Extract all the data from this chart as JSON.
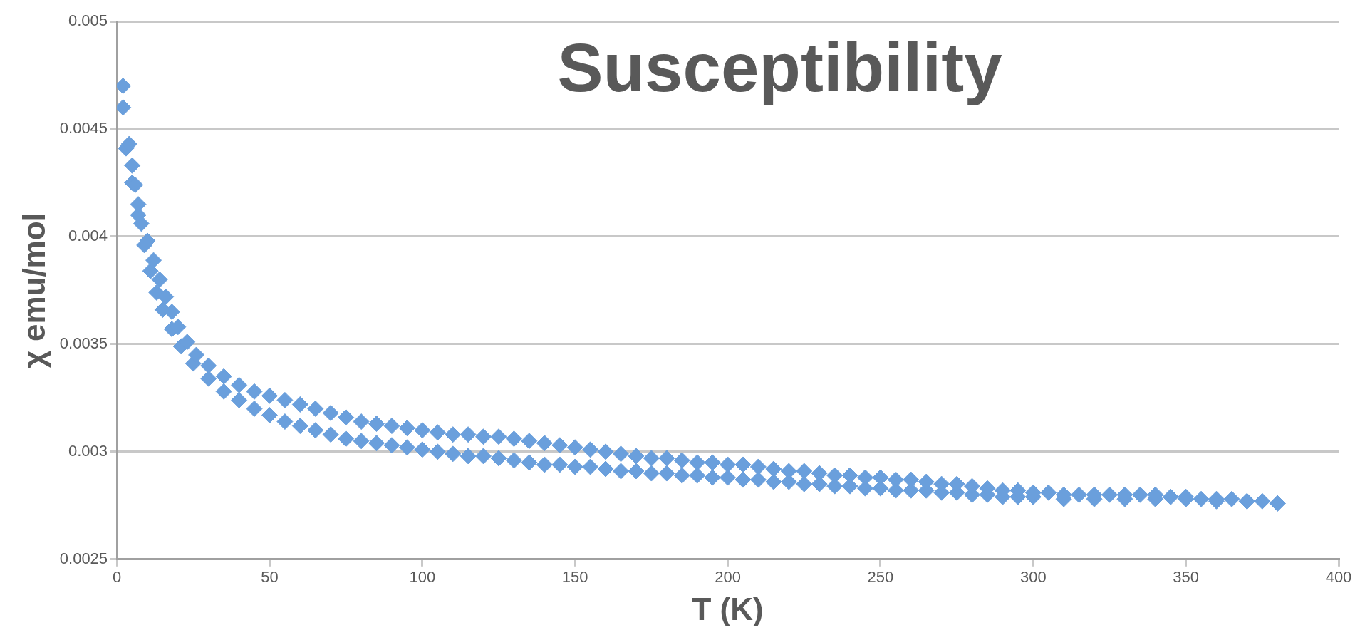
{
  "chart_data": {
    "type": "scatter",
    "title": "Susceptibility",
    "xlabel": "T (K)",
    "ylabel": "χ emu/mol",
    "marker": "diamond",
    "grid": "y",
    "xlim": [
      0,
      400
    ],
    "xticks": [
      0,
      50,
      100,
      150,
      200,
      250,
      300,
      350,
      400
    ],
    "ylim": [
      0.0025,
      0.005
    ],
    "yticks": [
      0.0025,
      0.003,
      0.0035,
      0.004,
      0.0045,
      0.005
    ],
    "series": [
      {
        "color": "#6a9fdc",
        "x": [
          2,
          2,
          4,
          5,
          6,
          7,
          8,
          10,
          12,
          14,
          16,
          18,
          20,
          23,
          26,
          30,
          35,
          40,
          45,
          50,
          55,
          60,
          65,
          70,
          75,
          80,
          85,
          90,
          95,
          100,
          105,
          110,
          115,
          120,
          125,
          130,
          135,
          140,
          145,
          150,
          155,
          160,
          165,
          170,
          175,
          180,
          185,
          190,
          195,
          200,
          205,
          210,
          215,
          220,
          225,
          230,
          235,
          240,
          245,
          250,
          255,
          260,
          265,
          270,
          275,
          280,
          285,
          290,
          295,
          300,
          305,
          310,
          315,
          320,
          325,
          330,
          335,
          340,
          345,
          350,
          355,
          360,
          365,
          370,
          375,
          380
        ],
        "values": [
          0.0047,
          0.0046,
          0.00443,
          0.00433,
          0.00424,
          0.00415,
          0.00406,
          0.00398,
          0.00389,
          0.0038,
          0.00372,
          0.00365,
          0.00358,
          0.00351,
          0.00345,
          0.0034,
          0.00335,
          0.00331,
          0.00328,
          0.00326,
          0.00324,
          0.00322,
          0.0032,
          0.00318,
          0.00316,
          0.00314,
          0.00313,
          0.00312,
          0.00311,
          0.0031,
          0.00309,
          0.00308,
          0.00308,
          0.00307,
          0.00307,
          0.00306,
          0.00305,
          0.00304,
          0.00303,
          0.00302,
          0.00301,
          0.003,
          0.00299,
          0.00298,
          0.00297,
          0.00297,
          0.00296,
          0.00295,
          0.00295,
          0.00294,
          0.00294,
          0.00293,
          0.00292,
          0.00291,
          0.00291,
          0.0029,
          0.00289,
          0.00289,
          0.00288,
          0.00288,
          0.00287,
          0.00287,
          0.00286,
          0.00285,
          0.00285,
          0.00284,
          0.00283,
          0.00282,
          0.00282,
          0.00281,
          0.00281,
          0.0028,
          0.0028,
          0.0028,
          0.0028,
          0.0028,
          0.0028,
          0.0028,
          0.00279,
          0.00279,
          0.00278,
          0.00278,
          0.00278,
          0.00277,
          0.00277,
          0.00276
        ]
      },
      {
        "color": "#6a9fdc",
        "x": [
          3,
          5,
          7,
          9,
          11,
          13,
          15,
          18,
          21,
          25,
          30,
          35,
          40,
          45,
          50,
          55,
          60,
          65,
          70,
          75,
          80,
          85,
          90,
          95,
          100,
          105,
          110,
          115,
          120,
          125,
          130,
          135,
          140,
          145,
          150,
          155,
          160,
          165,
          170,
          175,
          180,
          185,
          190,
          195,
          200,
          205,
          210,
          215,
          220,
          225,
          230,
          235,
          240,
          245,
          250,
          255,
          260,
          265,
          270,
          275,
          280,
          285,
          290,
          295,
          300,
          310,
          320,
          330,
          340,
          350,
          360,
          370,
          380
        ],
        "values": [
          0.00441,
          0.00425,
          0.0041,
          0.00396,
          0.00384,
          0.00374,
          0.00366,
          0.00357,
          0.00349,
          0.00341,
          0.00334,
          0.00328,
          0.00324,
          0.0032,
          0.00317,
          0.00314,
          0.00312,
          0.0031,
          0.00308,
          0.00306,
          0.00305,
          0.00304,
          0.00303,
          0.00302,
          0.00301,
          0.003,
          0.00299,
          0.00298,
          0.00298,
          0.00297,
          0.00296,
          0.00295,
          0.00294,
          0.00294,
          0.00293,
          0.00293,
          0.00292,
          0.00291,
          0.00291,
          0.0029,
          0.0029,
          0.00289,
          0.00289,
          0.00288,
          0.00288,
          0.00287,
          0.00287,
          0.00286,
          0.00286,
          0.00285,
          0.00285,
          0.00284,
          0.00284,
          0.00283,
          0.00283,
          0.00282,
          0.00282,
          0.00282,
          0.00281,
          0.00281,
          0.0028,
          0.0028,
          0.00279,
          0.00279,
          0.00279,
          0.00278,
          0.00278,
          0.00278,
          0.00278,
          0.00278,
          0.00277,
          0.00277,
          0.00276
        ]
      }
    ]
  }
}
